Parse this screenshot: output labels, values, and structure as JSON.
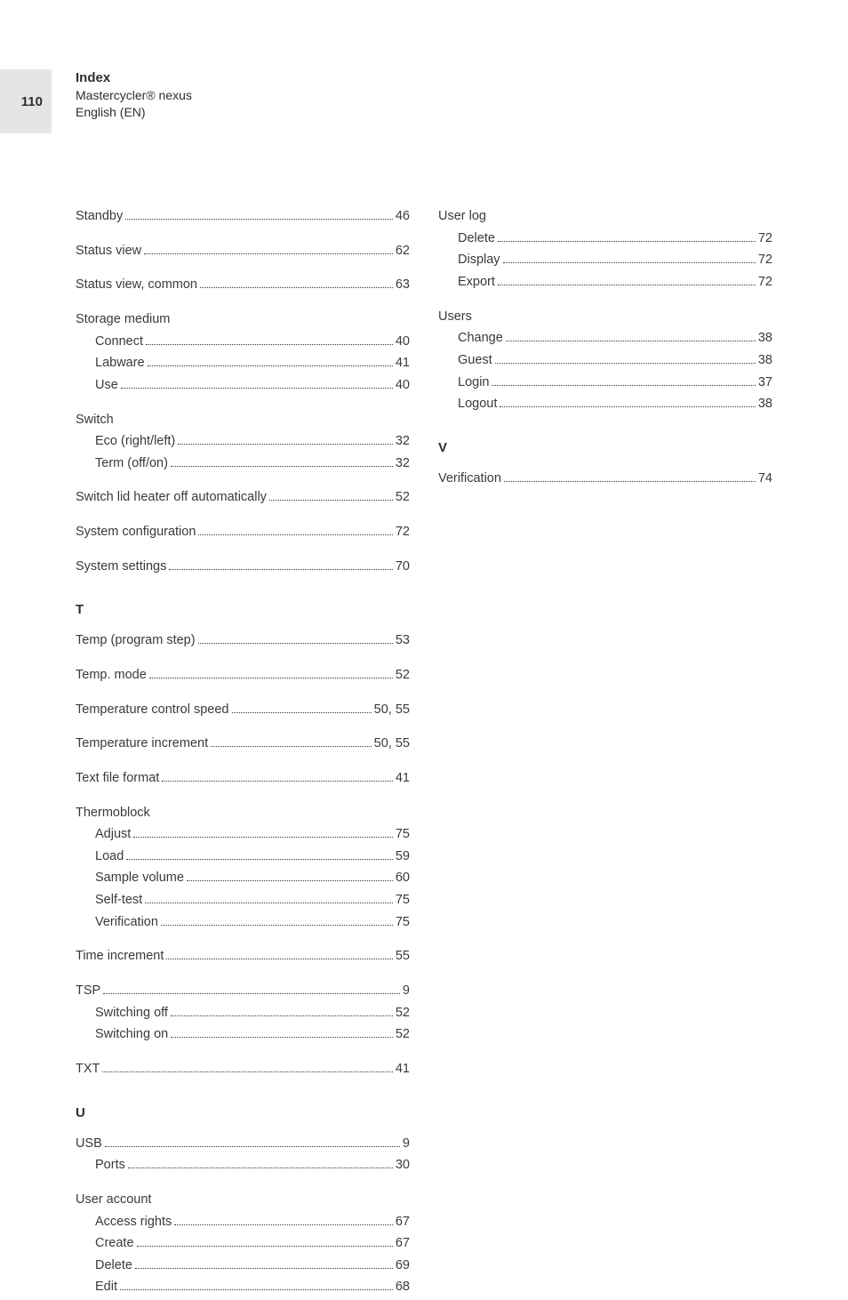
{
  "page_number": "110",
  "header": {
    "title": "Index",
    "product": "Mastercycler® nexus",
    "language": "English (EN)"
  },
  "left_column": [
    {
      "kind": "entry",
      "label": "Standby",
      "page": "46",
      "spaced": true
    },
    {
      "kind": "entry",
      "label": "Status view",
      "page": "62",
      "spaced": true
    },
    {
      "kind": "entry",
      "label": "Status view, common",
      "page": "63",
      "spaced": true
    },
    {
      "kind": "group",
      "label": "Storage medium",
      "spaced": true,
      "items": [
        {
          "label": "Connect",
          "page": "40"
        },
        {
          "label": "Labware",
          "page": "41"
        },
        {
          "label": "Use",
          "page": "40"
        }
      ]
    },
    {
      "kind": "group",
      "label": "Switch",
      "spaced": true,
      "items": [
        {
          "label": "Eco (right/left)",
          "page": "32"
        },
        {
          "label": "Term (off/on)",
          "page": "32"
        }
      ]
    },
    {
      "kind": "entry",
      "label": "Switch lid heater off automatically",
      "page": "52",
      "spaced": true
    },
    {
      "kind": "entry",
      "label": "System configuration",
      "page": "72",
      "spaced": true
    },
    {
      "kind": "entry",
      "label": "System settings",
      "page": "70",
      "spaced": true
    },
    {
      "kind": "letter",
      "label": "T"
    },
    {
      "kind": "entry",
      "label": "Temp (program step)",
      "page": "53",
      "spaced": true
    },
    {
      "kind": "entry",
      "label": "Temp. mode",
      "page": "52",
      "spaced": true
    },
    {
      "kind": "entry",
      "label": "Temperature control speed",
      "page": "50, 55",
      "spaced": true
    },
    {
      "kind": "entry",
      "label": "Temperature increment",
      "page": "50, 55",
      "spaced": true
    },
    {
      "kind": "entry",
      "label": "Text file format",
      "page": "41",
      "spaced": true
    },
    {
      "kind": "group",
      "label": "Thermoblock",
      "spaced": true,
      "items": [
        {
          "label": "Adjust",
          "page": "75"
        },
        {
          "label": "Load",
          "page": "59"
        },
        {
          "label": "Sample volume",
          "page": "60"
        },
        {
          "label": "Self-test",
          "page": "75"
        },
        {
          "label": "Verification",
          "page": "75"
        }
      ]
    },
    {
      "kind": "entry",
      "label": "Time increment",
      "page": "55",
      "spaced": true
    },
    {
      "kind": "group_entry",
      "label": "TSP",
      "page": "9",
      "spaced": true,
      "items": [
        {
          "label": "Switching off",
          "page": "52"
        },
        {
          "label": "Switching on",
          "page": "52"
        }
      ]
    },
    {
      "kind": "entry",
      "label": "TXT",
      "page": "41",
      "spaced": true
    },
    {
      "kind": "letter",
      "label": "U"
    },
    {
      "kind": "group_entry",
      "label": "USB",
      "page": "9",
      "spaced": true,
      "items": [
        {
          "label": "Ports",
          "page": "30"
        }
      ]
    },
    {
      "kind": "group",
      "label": "User account",
      "spaced": false,
      "items": [
        {
          "label": "Access rights",
          "page": "67"
        },
        {
          "label": "Create",
          "page": "67"
        },
        {
          "label": "Delete",
          "page": "69"
        },
        {
          "label": "Edit",
          "page": "68"
        }
      ]
    }
  ],
  "right_column": [
    {
      "kind": "group",
      "label": "User log",
      "spaced": true,
      "items": [
        {
          "label": "Delete",
          "page": "72"
        },
        {
          "label": "Display",
          "page": "72"
        },
        {
          "label": "Export",
          "page": "72"
        }
      ]
    },
    {
      "kind": "group",
      "label": "Users",
      "spaced": true,
      "items": [
        {
          "label": "Change",
          "page": "38"
        },
        {
          "label": "Guest",
          "page": "38"
        },
        {
          "label": "Login",
          "page": "37"
        },
        {
          "label": "Logout",
          "page": "38"
        }
      ]
    },
    {
      "kind": "letter",
      "label": "V"
    },
    {
      "kind": "entry",
      "label": "Verification",
      "page": "74",
      "spaced": true
    }
  ]
}
